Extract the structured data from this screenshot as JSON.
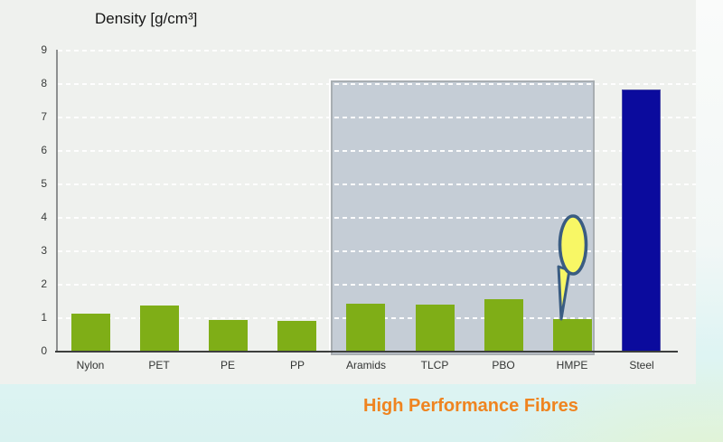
{
  "slide": {
    "footer_label": "High Performance Fibres",
    "colors": {
      "panel_background": "#eff1ee",
      "page_bottom_band": "#ddf4f3",
      "footer_text": "#ef8420",
      "highlight_box": "#c5cdd6",
      "balloon_fill": "#f8f765",
      "balloon_stroke": "#3a5c82"
    }
  },
  "chart_data": {
    "type": "bar",
    "title": "Density [g/cm³]",
    "xlabel": "",
    "ylabel": "Density [g/cm³]",
    "categories": [
      "Nylon",
      "PET",
      "PE",
      "PP",
      "Aramids",
      "TLCP",
      "PBO",
      "HMPE",
      "Steel"
    ],
    "values": [
      1.14,
      1.38,
      0.95,
      0.91,
      1.44,
      1.4,
      1.56,
      0.97,
      7.85
    ],
    "ylim": [
      0,
      9
    ],
    "yticks": [
      0,
      1,
      2,
      3,
      4,
      5,
      6,
      7,
      8,
      9
    ],
    "grid": "horizontal-dashed-white",
    "legend": "none",
    "bar_color_default": "#7fae17",
    "bar_color_overrides": {
      "Steel": "#0b0b9d"
    },
    "bar_border_overrides": {
      "Steel": "#4747a8"
    },
    "highlight_region": {
      "categories": [
        "Aramids",
        "TLCP",
        "PBO",
        "HMPE"
      ],
      "label": "High Performance Fibres",
      "top_value": 8.1
    },
    "annotation": {
      "type": "balloon-callout",
      "target_category": "HMPE"
    }
  }
}
